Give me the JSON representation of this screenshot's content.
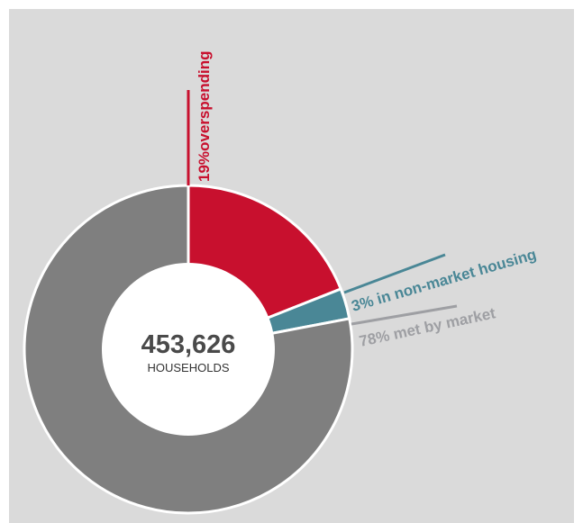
{
  "chart_data": {
    "type": "pie",
    "style": "donut",
    "center": {
      "value": "453,626",
      "label": "HOUSEHOLDS"
    },
    "slices": [
      {
        "label": "19%overspending",
        "value": 19,
        "color": "#c8102e"
      },
      {
        "label": "3% in non-market housing",
        "value": 3,
        "color": "#4a8796"
      },
      {
        "label": "78% met by market",
        "value": 78,
        "color": "#7f7f7f"
      }
    ],
    "callout_colors": [
      "#c8102e",
      "#4a8796",
      "#9e9fa3"
    ]
  }
}
